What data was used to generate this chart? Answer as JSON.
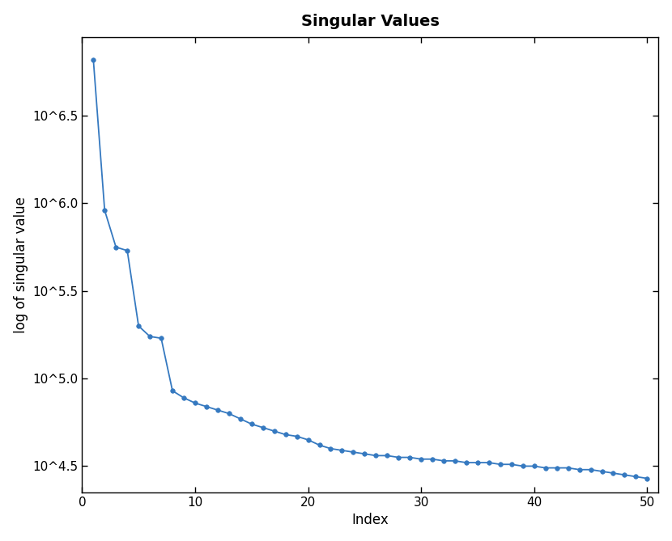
{
  "title": "Singular Values",
  "xlabel": "Index",
  "ylabel": "log of singular value",
  "x_values": [
    1,
    2,
    3,
    4,
    5,
    6,
    7,
    8,
    9,
    10,
    11,
    12,
    13,
    14,
    15,
    16,
    17,
    18,
    19,
    20,
    21,
    22,
    23,
    24,
    25,
    26,
    27,
    28,
    29,
    30,
    31,
    32,
    33,
    34,
    35,
    36,
    37,
    38,
    39,
    40,
    41,
    42,
    43,
    44,
    45,
    46,
    47,
    48,
    49,
    50
  ],
  "y_values_log10": [
    6.82,
    5.96,
    5.75,
    5.73,
    5.3,
    5.24,
    5.23,
    4.93,
    4.89,
    4.86,
    4.84,
    4.82,
    4.8,
    4.77,
    4.74,
    4.72,
    4.7,
    4.68,
    4.67,
    4.65,
    4.62,
    4.6,
    4.59,
    4.58,
    4.57,
    4.56,
    4.56,
    4.55,
    4.55,
    4.54,
    4.54,
    4.53,
    4.53,
    4.52,
    4.52,
    4.52,
    4.51,
    4.51,
    4.5,
    4.5,
    4.49,
    4.49,
    4.49,
    4.48,
    4.48,
    4.47,
    4.46,
    4.45,
    4.44,
    4.43
  ],
  "line_color": "#3579C0",
  "marker_color": "#3579C0",
  "marker_size": 4,
  "line_width": 1.3,
  "xlim": [
    0,
    51
  ],
  "ylim_log10": [
    4.35,
    6.95
  ],
  "yticks_log10": [
    4.5,
    5.0,
    5.5,
    6.0,
    6.5
  ],
  "ytick_labels": [
    "10^4.5",
    "10^5.0",
    "10^5.5",
    "10^6.0",
    "10^6.5"
  ],
  "xticks": [
    0,
    10,
    20,
    30,
    40,
    50
  ],
  "title_fontsize": 14,
  "axis_label_fontsize": 12,
  "tick_fontsize": 11
}
